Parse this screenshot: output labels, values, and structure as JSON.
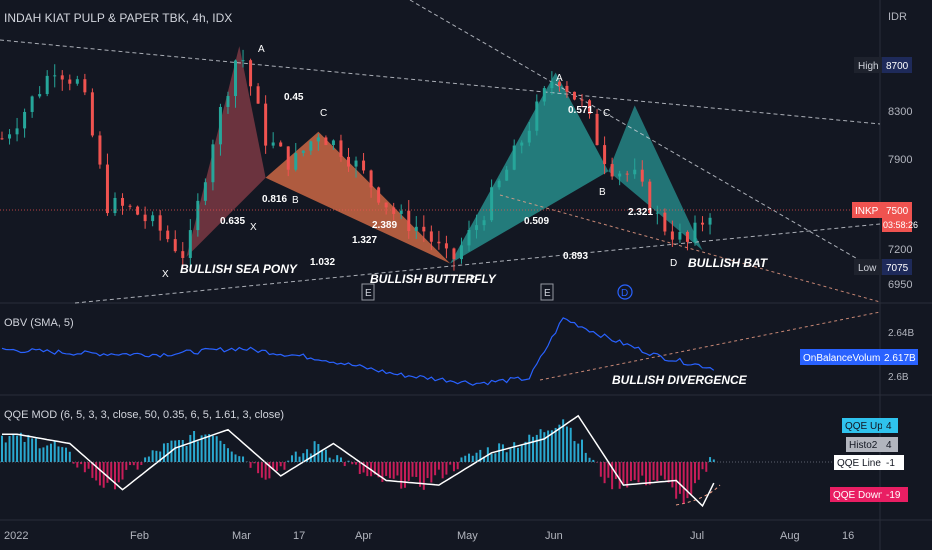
{
  "header": {
    "title": "INDAH KIAT PULP & PAPER TBK, 4h, IDX",
    "currency": "IDR"
  },
  "price_scale": {
    "ticks": [
      "8300",
      "7900",
      "7200",
      "6950"
    ],
    "high_label": "High",
    "high_value": "8700",
    "low_label": "Low",
    "low_value": "7075",
    "ticker": "INKP",
    "last_price": "7500",
    "countdown": "03:58:26"
  },
  "obv_panel": {
    "title": "OBV (SMA, 5)",
    "ticks": [
      "2.64B",
      "2.6B"
    ],
    "badge_label": "OnBalanceVolume",
    "badge_value": "2.617B",
    "annotation": "BULLISH DIVERGENCE"
  },
  "qqe_panel": {
    "title": "QQE MOD (6, 5, 3, 3, close, 50, 0.35, 6, 5, 1.61, 3, close)",
    "legend": [
      {
        "label": "QQE Up",
        "value": "4",
        "color": "#2fc3ee"
      },
      {
        "label": "Histo2",
        "value": "4",
        "color": "#b2b5be"
      },
      {
        "label": "QQE Line",
        "value": "-1",
        "color": "#ffffff"
      },
      {
        "label": "QQE Down",
        "value": "-19",
        "color": "#e91e63"
      }
    ]
  },
  "time_axis": [
    "2022",
    "Feb",
    "Mar",
    "17",
    "Apr",
    "May",
    "Jun",
    "Jul",
    "Aug",
    "16"
  ],
  "patterns": [
    {
      "name": "BULLISH SEA PONY",
      "points": [
        "X",
        "A",
        "B"
      ],
      "ratios": [
        "0.635",
        "0.816",
        "0.45",
        "1.032"
      ]
    },
    {
      "name": "BULLISH BUTTERFLY",
      "points": [
        "C",
        "D"
      ],
      "ratios": [
        "2.389",
        "1.327"
      ]
    },
    {
      "name": "BULLISH BAT",
      "points": [
        "A",
        "B",
        "C",
        "D"
      ],
      "ratios": [
        "0.509",
        "0.893",
        "2.321",
        "0.571"
      ]
    }
  ],
  "event_markers": [
    "E",
    "E",
    "D"
  ],
  "colors": {
    "bull": "#26a69a",
    "bear": "#ef5350",
    "obv": "#2962ff",
    "bg": "#131722",
    "sea_pony": "#b54a55",
    "butterfly": "#e4734a",
    "bat": "#2a9d9a"
  },
  "chart_data": {
    "type": "candlestick",
    "title": "INDAH KIAT PULP & PAPER TBK, 4h, IDX",
    "ylabel": "IDR",
    "ylim": [
      6750,
      9050
    ],
    "x_range": [
      "2022-01-03",
      "2022-08-22"
    ],
    "last_price": 7500,
    "high": 8700,
    "low": 7075,
    "price_path": [
      [
        "2022-01-03",
        8000
      ],
      [
        "2022-01-10",
        8250
      ],
      [
        "2022-01-17",
        8550
      ],
      [
        "2022-01-24",
        8400
      ],
      [
        "2022-01-31",
        7500
      ],
      [
        "2022-02-07",
        7450
      ],
      [
        "2022-02-14",
        7300
      ],
      [
        "2022-02-21",
        7100
      ],
      [
        "2022-02-28",
        8000
      ],
      [
        "2022-03-07",
        8700
      ],
      [
        "2022-03-14",
        8000
      ],
      [
        "2022-03-21",
        7800
      ],
      [
        "2022-03-28",
        8050
      ],
      [
        "2022-04-04",
        7900
      ],
      [
        "2022-04-11",
        7650
      ],
      [
        "2022-04-18",
        7400
      ],
      [
        "2022-04-25",
        7300
      ],
      [
        "2022-05-02",
        7050
      ],
      [
        "2022-05-09",
        7350
      ],
      [
        "2022-05-16",
        7700
      ],
      [
        "2022-05-23",
        8100
      ],
      [
        "2022-05-30",
        8500
      ],
      [
        "2022-06-06",
        8250
      ],
      [
        "2022-06-13",
        7800
      ],
      [
        "2022-06-20",
        7700
      ],
      [
        "2022-06-27",
        7350
      ],
      [
        "2022-07-04",
        7200
      ],
      [
        "2022-07-11",
        7500
      ]
    ],
    "obv_series": {
      "name": "OnBalanceVolume",
      "path": [
        [
          "2022-01-03",
          2.632
        ],
        [
          "2022-01-24",
          2.629
        ],
        [
          "2022-02-14",
          2.628
        ],
        [
          "2022-03-07",
          2.633
        ],
        [
          "2022-03-28",
          2.625
        ],
        [
          "2022-04-18",
          2.612
        ],
        [
          "2022-05-09",
          2.605
        ],
        [
          "2022-05-23",
          2.609
        ],
        [
          "2022-06-01",
          2.657
        ],
        [
          "2022-06-13",
          2.641
        ],
        [
          "2022-06-27",
          2.626
        ],
        [
          "2022-07-11",
          2.617
        ]
      ]
    },
    "qqe_histogram": [
      [
        "2022-01-03",
        12
      ],
      [
        "2022-01-17",
        8
      ],
      [
        "2022-01-31",
        -12
      ],
      [
        "2022-02-14",
        6
      ],
      [
        "2022-02-28",
        14
      ],
      [
        "2022-03-14",
        -6
      ],
      [
        "2022-03-28",
        8
      ],
      [
        "2022-04-11",
        -8
      ],
      [
        "2022-04-25",
        -10
      ],
      [
        "2022-05-09",
        4
      ],
      [
        "2022-05-23",
        10
      ],
      [
        "2022-06-01",
        20
      ],
      [
        "2022-06-13",
        -10
      ],
      [
        "2022-06-27",
        -8
      ],
      [
        "2022-07-04",
        -19
      ],
      [
        "2022-07-11",
        4
      ]
    ]
  }
}
